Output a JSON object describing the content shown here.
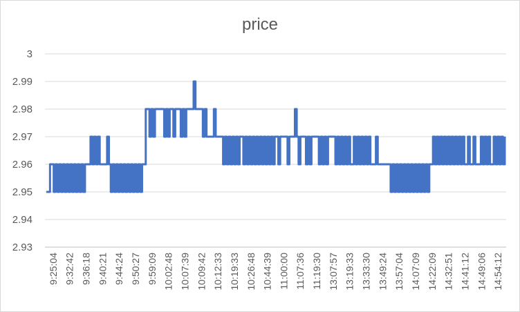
{
  "chart_data": {
    "type": "line",
    "title": "price",
    "xlabel": "",
    "ylabel": "",
    "ylim": [
      2.93,
      3.0
    ],
    "y_ticks": [
      "2.93",
      "2.94",
      "2.95",
      "2.96",
      "2.97",
      "2.98",
      "2.99",
      "3"
    ],
    "x_tick_labels": [
      "9:25:04",
      "9:32:42",
      "9:36:18",
      "9:40:21",
      "9:44:24",
      "9:50:27",
      "9:59:09",
      "10:02:48",
      "10:07:39",
      "10:09:42",
      "10:12:33",
      "10:19:33",
      "10:26:48",
      "10:44:39",
      "11:00:00",
      "11:07:36",
      "11:19:30",
      "13:07:57",
      "13:19:33",
      "13:33:30",
      "13:49:24",
      "13:57:04",
      "14:07:09",
      "14:22:09",
      "14:32:51",
      "14:41:12",
      "14:49:06",
      "14:54:12"
    ],
    "grid": true,
    "legend": "none",
    "series_color": "#4472c4",
    "series": [
      {
        "values": [
          2.95,
          2.95,
          2.96,
          2.96,
          2.95,
          2.96,
          2.95,
          2.96,
          2.95,
          2.96,
          2.95,
          2.96,
          2.95,
          2.96,
          2.95,
          2.96,
          2.95,
          2.96,
          2.95,
          2.96,
          2.95,
          2.96,
          2.96,
          2.96,
          2.97,
          2.96,
          2.97,
          2.96,
          2.97,
          2.96,
          2.96,
          2.96,
          2.96,
          2.97,
          2.96,
          2.95,
          2.96,
          2.95,
          2.96,
          2.95,
          2.96,
          2.95,
          2.96,
          2.95,
          2.96,
          2.95,
          2.96,
          2.95,
          2.96,
          2.95,
          2.96,
          2.95,
          2.96,
          2.96,
          2.98,
          2.98,
          2.97,
          2.98,
          2.97,
          2.98,
          2.98,
          2.98,
          2.98,
          2.98,
          2.97,
          2.98,
          2.97,
          2.98,
          2.98,
          2.97,
          2.98,
          2.98,
          2.98,
          2.97,
          2.98,
          2.97,
          2.98,
          2.98,
          2.98,
          2.98,
          2.99,
          2.98,
          2.98,
          2.98,
          2.98,
          2.97,
          2.98,
          2.97,
          2.97,
          2.97,
          2.97,
          2.98,
          2.97,
          2.97,
          2.97,
          2.97,
          2.96,
          2.97,
          2.96,
          2.97,
          2.96,
          2.97,
          2.96,
          2.97,
          2.96,
          2.97,
          2.97,
          2.96,
          2.97,
          2.96,
          2.97,
          2.96,
          2.97,
          2.96,
          2.97,
          2.96,
          2.97,
          2.96,
          2.97,
          2.96,
          2.97,
          2.96,
          2.97,
          2.96,
          2.97,
          2.97,
          2.96,
          2.97,
          2.97,
          2.97,
          2.97,
          2.96,
          2.97,
          2.97,
          2.97,
          2.98,
          2.97,
          2.96,
          2.97,
          2.97,
          2.97,
          2.96,
          2.97,
          2.96,
          2.97,
          2.97,
          2.97,
          2.97,
          2.96,
          2.97,
          2.96,
          2.97,
          2.96,
          2.97,
          2.97,
          2.97,
          2.97,
          2.96,
          2.97,
          2.96,
          2.97,
          2.96,
          2.97,
          2.96,
          2.97,
          2.96,
          2.96,
          2.97,
          2.96,
          2.97,
          2.96,
          2.97,
          2.96,
          2.97,
          2.96,
          2.97,
          2.96,
          2.96,
          2.96,
          2.97,
          2.96,
          2.96,
          2.96,
          2.96,
          2.96,
          2.96,
          2.96,
          2.95,
          2.96,
          2.95,
          2.96,
          2.95,
          2.96,
          2.95,
          2.96,
          2.95,
          2.96,
          2.95,
          2.96,
          2.95,
          2.96,
          2.95,
          2.96,
          2.95,
          2.96,
          2.95,
          2.96,
          2.95,
          2.96,
          2.96,
          2.97,
          2.96,
          2.97,
          2.96,
          2.97,
          2.96,
          2.97,
          2.96,
          2.97,
          2.96,
          2.97,
          2.96,
          2.97,
          2.96,
          2.97,
          2.96,
          2.97,
          2.96,
          2.96,
          2.97,
          2.96,
          2.96,
          2.97,
          2.96,
          2.96,
          2.96,
          2.97,
          2.96,
          2.97,
          2.96,
          2.97,
          2.96,
          2.96,
          2.97,
          2.96,
          2.97,
          2.96,
          2.97,
          2.96,
          2.97
        ]
      }
    ]
  }
}
